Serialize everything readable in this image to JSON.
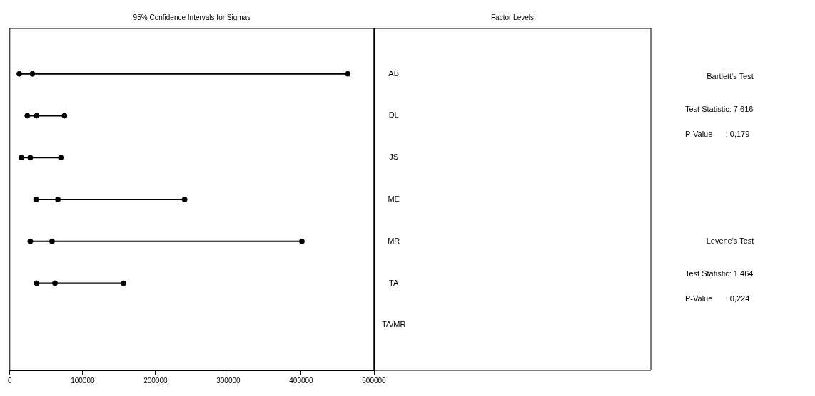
{
  "chart_data": {
    "type": "scatter",
    "orientation": "horizontal",
    "title": "95% Confidence Intervals for Sigmas",
    "categories": [
      "AB",
      "DL",
      "JS",
      "ME",
      "MR",
      "TA",
      "TA/MR"
    ],
    "series": [
      {
        "type": "bar",
        "color": "#000000",
        "base": [
          13000,
          24000,
          16000,
          36000,
          28000,
          37000,
          null
        ],
        "values": [
          451000,
          51000,
          54000,
          204000,
          373000,
          119000,
          null
        ]
      },
      {
        "color": "#000000",
        "values": [
          13000,
          24000,
          16000,
          36000,
          28000,
          37000,
          null
        ]
      },
      {
        "color": "#000000",
        "values": [
          31000,
          37000,
          28000,
          66000,
          58000,
          62000,
          null
        ]
      },
      {
        "color": "#000000",
        "values": [
          464000,
          75000,
          70000,
          240000,
          401000,
          156000,
          null
        ]
      }
    ],
    "marker": "circle",
    "xlim": [
      0,
      500000
    ],
    "xticks": [
      0,
      100000,
      200000,
      300000,
      400000,
      500000
    ],
    "annotations": [
      "Factor Levels",
      "Bartlett's Test",
      "Test Statistic: 7,616",
      "P-Value      : 0,179",
      "Levene's Test",
      "Test Statistic: 1,464",
      "P-Value      : 0,224"
    ]
  }
}
